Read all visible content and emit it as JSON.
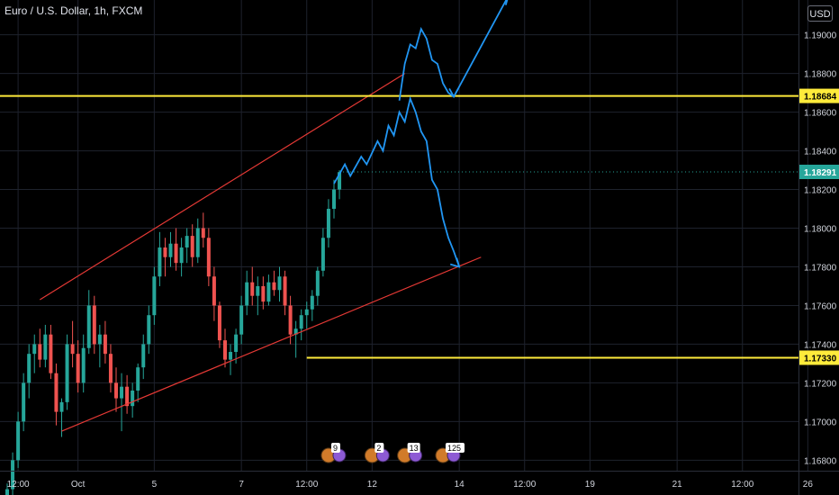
{
  "header": {
    "title": "Euro / U.S. Dollar, 1h, FXCM",
    "currency_button": "USD"
  },
  "colors": {
    "background": "#000000",
    "grid": "#1e222d",
    "up_candle": "#26a69a",
    "down_candle": "#ef5350",
    "channel_line": "#e53935",
    "level_line": "#ffeb3b",
    "projection": "#2196f3",
    "current_price_label": "#26a69a",
    "axis_text": "#d1d4dc"
  },
  "chart_data": {
    "type": "candlestick",
    "symbol": "Euro / U.S. Dollar",
    "interval": "1h",
    "source": "FXCM",
    "ylim": [
      1.1662,
      1.1918
    ],
    "y_ticks": [
      1.168,
      1.17,
      1.172,
      1.174,
      1.176,
      1.178,
      1.18,
      1.182,
      1.184,
      1.186,
      1.188,
      1.19
    ],
    "y_tick_labels": [
      "1.16800",
      "1.17000",
      "1.17200",
      "1.17400",
      "1.17600",
      "1.17800",
      "1.18000",
      "1.18200",
      "1.18400",
      "1.18600",
      "1.18800",
      "1.19000"
    ],
    "x_tick_labels": [
      {
        "label": "12:00",
        "bar": 2
      },
      {
        "label": "Oct",
        "bar": 13
      },
      {
        "label": "5",
        "bar": 27
      },
      {
        "label": "7",
        "bar": 43
      },
      {
        "label": "12:00",
        "bar": 55
      },
      {
        "label": "12",
        "bar": 67
      },
      {
        "label": "14",
        "bar": 83
      },
      {
        "label": "12:00",
        "bar": 95
      },
      {
        "label": "19",
        "bar": 107
      },
      {
        "label": "21",
        "bar": 123
      },
      {
        "label": "12:00",
        "bar": 135
      },
      {
        "label": "26",
        "bar": 147
      }
    ],
    "price_labels": [
      {
        "value": 1.18684,
        "label": "1.18684",
        "kind": "level"
      },
      {
        "value": 1.18291,
        "label": "1.18291",
        "kind": "current"
      },
      {
        "value": 1.1733,
        "label": "1.17330",
        "kind": "level"
      }
    ],
    "horizontal_levels": [
      1.18684,
      1.1733
    ],
    "current_price": 1.18291,
    "candles": [
      [
        1.1662,
        1.1668,
        1.1658,
        1.1665
      ],
      [
        1.1665,
        1.1684,
        1.1662,
        1.168
      ],
      [
        1.168,
        1.1705,
        1.1676,
        1.17
      ],
      [
        1.17,
        1.1725,
        1.1695,
        1.172
      ],
      [
        1.172,
        1.174,
        1.1712,
        1.1735
      ],
      [
        1.1735,
        1.1745,
        1.1725,
        1.174
      ],
      [
        1.174,
        1.1748,
        1.1728,
        1.1732
      ],
      [
        1.1732,
        1.175,
        1.1728,
        1.1745
      ],
      [
        1.1745,
        1.175,
        1.1722,
        1.1725
      ],
      [
        1.1725,
        1.173,
        1.1698,
        1.1705
      ],
      [
        1.1705,
        1.1712,
        1.1692,
        1.171
      ],
      [
        1.171,
        1.1745,
        1.1706,
        1.174
      ],
      [
        1.174,
        1.1752,
        1.1728,
        1.1735
      ],
      [
        1.1735,
        1.1742,
        1.1715,
        1.172
      ],
      [
        1.172,
        1.1745,
        1.1715,
        1.1738
      ],
      [
        1.1738,
        1.1768,
        1.1735,
        1.176
      ],
      [
        1.176,
        1.1765,
        1.1735,
        1.174
      ],
      [
        1.174,
        1.175,
        1.1728,
        1.1745
      ],
      [
        1.1745,
        1.1752,
        1.173,
        1.1735
      ],
      [
        1.1735,
        1.174,
        1.1715,
        1.172
      ],
      [
        1.172,
        1.1728,
        1.1705,
        1.1712
      ],
      [
        1.1712,
        1.1725,
        1.1695,
        1.1718
      ],
      [
        1.1718,
        1.1724,
        1.1704,
        1.1708
      ],
      [
        1.1708,
        1.172,
        1.1702,
        1.1716
      ],
      [
        1.1716,
        1.173,
        1.171,
        1.1728
      ],
      [
        1.1728,
        1.1745,
        1.1722,
        1.174
      ],
      [
        1.174,
        1.176,
        1.1735,
        1.1755
      ],
      [
        1.1755,
        1.178,
        1.175,
        1.1775
      ],
      [
        1.1775,
        1.1798,
        1.177,
        1.179
      ],
      [
        1.179,
        1.1795,
        1.1775,
        1.1785
      ],
      [
        1.1785,
        1.1798,
        1.178,
        1.1792
      ],
      [
        1.1792,
        1.18,
        1.1778,
        1.1782
      ],
      [
        1.1782,
        1.1795,
        1.1775,
        1.179
      ],
      [
        1.179,
        1.18,
        1.1782,
        1.1796
      ],
      [
        1.1796,
        1.1802,
        1.178,
        1.1785
      ],
      [
        1.1785,
        1.1805,
        1.1782,
        1.18
      ],
      [
        1.18,
        1.1808,
        1.179,
        1.1795
      ],
      [
        1.1795,
        1.18,
        1.177,
        1.1775
      ],
      [
        1.1775,
        1.178,
        1.1752,
        1.176
      ],
      [
        1.176,
        1.1762,
        1.1738,
        1.1742
      ],
      [
        1.1742,
        1.1748,
        1.1728,
        1.1732
      ],
      [
        1.1732,
        1.174,
        1.1724,
        1.1736
      ],
      [
        1.1736,
        1.1748,
        1.173,
        1.1745
      ],
      [
        1.1745,
        1.1765,
        1.174,
        1.176
      ],
      [
        1.176,
        1.1778,
        1.1755,
        1.1772
      ],
      [
        1.1772,
        1.178,
        1.176,
        1.1765
      ],
      [
        1.1765,
        1.1775,
        1.1755,
        1.177
      ],
      [
        1.177,
        1.1775,
        1.1758,
        1.1762
      ],
      [
        1.1762,
        1.1776,
        1.176,
        1.1772
      ],
      [
        1.1772,
        1.1778,
        1.1765,
        1.1768
      ],
      [
        1.1768,
        1.178,
        1.1762,
        1.1775
      ],
      [
        1.1775,
        1.1778,
        1.1755,
        1.176
      ],
      [
        1.176,
        1.1765,
        1.174,
        1.1745
      ],
      [
        1.1745,
        1.1752,
        1.1733,
        1.1748
      ],
      [
        1.1748,
        1.1758,
        1.1742,
        1.1755
      ],
      [
        1.1755,
        1.1762,
        1.1748,
        1.1758
      ],
      [
        1.1758,
        1.1768,
        1.1752,
        1.1765
      ],
      [
        1.1765,
        1.178,
        1.176,
        1.1778
      ],
      [
        1.1778,
        1.18,
        1.1775,
        1.1795
      ],
      [
        1.1795,
        1.1815,
        1.179,
        1.181
      ],
      [
        1.181,
        1.1825,
        1.1805,
        1.182
      ],
      [
        1.182,
        1.183,
        1.1815,
        1.1829
      ]
    ],
    "channel_lines": [
      {
        "from": [
          6,
          1.1763
        ],
        "to": [
          73,
          1.188
        ]
      },
      {
        "from": [
          10,
          1.1695
        ],
        "to": [
          87,
          1.1785
        ]
      }
    ],
    "projection_paths": [
      [
        [
          60,
          1.1823
        ],
        [
          62,
          1.1833
        ],
        [
          63,
          1.1827
        ],
        [
          65,
          1.1837
        ],
        [
          66,
          1.1833
        ],
        [
          68,
          1.1845
        ],
        [
          69,
          1.184
        ],
        [
          70,
          1.1853
        ],
        [
          71,
          1.1848
        ],
        [
          72,
          1.186
        ],
        [
          73,
          1.1855
        ],
        [
          74,
          1.1867
        ],
        [
          75,
          1.186
        ],
        [
          76,
          1.185
        ],
        [
          77,
          1.1845
        ],
        [
          78,
          1.1825
        ],
        [
          79,
          1.182
        ],
        [
          80,
          1.1805
        ],
        [
          81,
          1.1795
        ],
        [
          82,
          1.1788
        ],
        [
          83,
          1.178
        ]
      ],
      [
        [
          72,
          1.1866
        ],
        [
          73,
          1.1885
        ],
        [
          74,
          1.1895
        ],
        [
          75,
          1.1893
        ],
        [
          76,
          1.1903
        ],
        [
          77,
          1.1898
        ],
        [
          78,
          1.1887
        ],
        [
          79,
          1.1885
        ],
        [
          80,
          1.1875
        ],
        [
          81,
          1.187
        ],
        [
          82,
          1.1868
        ]
      ],
      [
        [
          82,
          1.1868
        ],
        [
          92,
          1.192
        ]
      ]
    ],
    "arrow_heads": [
      {
        "at": [
          83,
          1.178
        ],
        "dir": [
          1,
          -1
        ]
      },
      {
        "at": [
          82,
          1.1868
        ],
        "dir": [
          0,
          -1
        ]
      },
      {
        "at": [
          92,
          1.192
        ],
        "dir": [
          1,
          1
        ]
      }
    ]
  },
  "event_markers": [
    {
      "bar": 59,
      "label": "9"
    },
    {
      "bar": 67,
      "label": "2"
    },
    {
      "bar": 73,
      "label": "13"
    },
    {
      "bar": 80,
      "label": "125"
    }
  ]
}
